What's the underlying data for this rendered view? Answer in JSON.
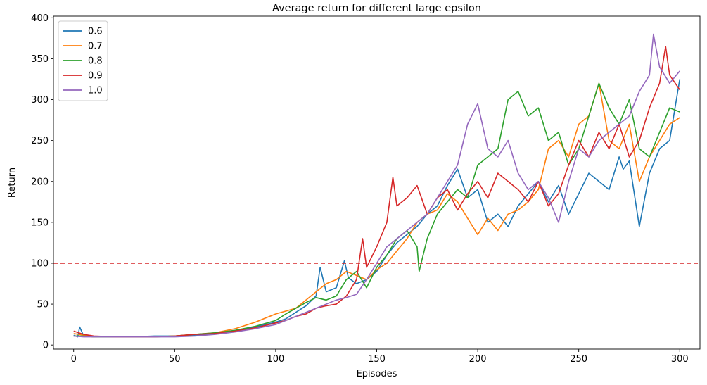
{
  "chart_data": {
    "type": "line",
    "title": "Average return for different large epsilon",
    "xlabel": "Episodes",
    "ylabel": "Return",
    "xlim": [
      -10,
      310
    ],
    "ylim": [
      -5,
      402
    ],
    "xticks": [
      0,
      50,
      100,
      150,
      200,
      250,
      300
    ],
    "yticks": [
      0,
      50,
      100,
      150,
      200,
      250,
      300,
      350,
      400
    ],
    "grid": false,
    "legend_position": "top-left",
    "reference_line": {
      "y": 100,
      "color": "#d62728",
      "style": "dashed"
    },
    "series": [
      {
        "name": "0.6",
        "color": "#1f77b4",
        "x": [
          0,
          2,
          3,
          5,
          10,
          20,
          30,
          40,
          50,
          60,
          70,
          80,
          90,
          100,
          105,
          110,
          115,
          120,
          122,
          125,
          130,
          134,
          136,
          140,
          145,
          150,
          155,
          160,
          165,
          170,
          175,
          180,
          185,
          190,
          195,
          200,
          205,
          210,
          215,
          220,
          225,
          230,
          235,
          240,
          245,
          250,
          255,
          260,
          265,
          270,
          272,
          275,
          280,
          285,
          290,
          295,
          300
        ],
        "y": [
          12,
          10,
          22,
          11,
          10,
          10,
          10,
          11,
          11,
          12,
          14,
          18,
          22,
          28,
          32,
          40,
          48,
          60,
          95,
          65,
          70,
          103,
          82,
          75,
          80,
          90,
          110,
          125,
          135,
          145,
          160,
          170,
          195,
          215,
          180,
          190,
          150,
          160,
          145,
          170,
          185,
          200,
          175,
          195,
          160,
          185,
          210,
          200,
          190,
          230,
          215,
          225,
          145,
          210,
          240,
          250,
          325
        ]
      },
      {
        "name": "0.7",
        "color": "#ff7f0e",
        "x": [
          0,
          5,
          10,
          20,
          30,
          40,
          50,
          60,
          70,
          80,
          90,
          95,
          100,
          110,
          115,
          120,
          125,
          130,
          135,
          140,
          145,
          150,
          155,
          160,
          165,
          170,
          175,
          180,
          185,
          190,
          195,
          200,
          205,
          210,
          215,
          220,
          225,
          230,
          235,
          240,
          245,
          250,
          255,
          260,
          265,
          270,
          275,
          280,
          285,
          290,
          295,
          300
        ],
        "y": [
          14,
          12,
          10,
          10,
          10,
          10,
          11,
          13,
          15,
          20,
          28,
          33,
          38,
          45,
          55,
          65,
          75,
          80,
          90,
          85,
          80,
          92,
          100,
          115,
          130,
          150,
          160,
          165,
          185,
          175,
          155,
          135,
          155,
          140,
          160,
          165,
          175,
          190,
          240,
          250,
          230,
          270,
          280,
          320,
          250,
          240,
          270,
          200,
          230,
          250,
          270,
          278
        ]
      },
      {
        "name": "0.8",
        "color": "#2ca02c",
        "x": [
          0,
          5,
          10,
          20,
          30,
          40,
          50,
          60,
          70,
          80,
          90,
          100,
          105,
          110,
          115,
          120,
          125,
          130,
          135,
          140,
          145,
          150,
          155,
          160,
          165,
          170,
          171,
          175,
          180,
          185,
          190,
          195,
          200,
          205,
          210,
          215,
          220,
          225,
          230,
          235,
          240,
          245,
          250,
          255,
          260,
          265,
          270,
          275,
          280,
          285,
          290,
          295,
          300
        ],
        "y": [
          11,
          11,
          10,
          10,
          10,
          10,
          11,
          13,
          15,
          18,
          23,
          30,
          38,
          45,
          52,
          58,
          55,
          60,
          80,
          90,
          70,
          95,
          110,
          130,
          140,
          120,
          90,
          130,
          160,
          175,
          190,
          180,
          220,
          230,
          240,
          300,
          310,
          280,
          290,
          250,
          260,
          220,
          240,
          280,
          320,
          290,
          270,
          300,
          240,
          230,
          260,
          290,
          285
        ]
      },
      {
        "name": "0.9",
        "color": "#d62728",
        "x": [
          0,
          5,
          10,
          20,
          30,
          40,
          50,
          60,
          70,
          80,
          90,
          100,
          105,
          110,
          115,
          120,
          125,
          130,
          135,
          140,
          143,
          145,
          150,
          155,
          158,
          160,
          165,
          170,
          175,
          180,
          185,
          190,
          195,
          200,
          205,
          210,
          215,
          220,
          225,
          230,
          235,
          240,
          245,
          250,
          255,
          260,
          265,
          270,
          275,
          280,
          285,
          290,
          293,
          295,
          300
        ],
        "y": [
          17,
          13,
          11,
          10,
          10,
          10,
          11,
          13,
          14,
          17,
          21,
          27,
          30,
          35,
          38,
          45,
          48,
          50,
          60,
          80,
          130,
          95,
          120,
          150,
          205,
          170,
          180,
          195,
          160,
          180,
          190,
          165,
          185,
          200,
          180,
          210,
          200,
          190,
          175,
          200,
          170,
          185,
          220,
          250,
          230,
          260,
          240,
          270,
          230,
          250,
          290,
          320,
          365,
          330,
          312
        ]
      },
      {
        "name": "1.0",
        "color": "#9467bd",
        "x": [
          0,
          5,
          10,
          20,
          30,
          40,
          50,
          60,
          70,
          80,
          90,
          100,
          105,
          110,
          115,
          120,
          125,
          130,
          135,
          140,
          145,
          150,
          155,
          160,
          165,
          170,
          175,
          180,
          185,
          190,
          195,
          200,
          205,
          210,
          215,
          220,
          225,
          230,
          235,
          240,
          245,
          250,
          255,
          260,
          265,
          270,
          275,
          280,
          285,
          287,
          290,
          295,
          300
        ],
        "y": [
          11,
          10,
          10,
          10,
          10,
          10,
          10,
          11,
          13,
          16,
          20,
          25,
          30,
          35,
          40,
          45,
          50,
          55,
          58,
          62,
          80,
          100,
          120,
          130,
          140,
          150,
          160,
          180,
          200,
          220,
          270,
          295,
          240,
          230,
          250,
          210,
          190,
          200,
          180,
          150,
          200,
          240,
          230,
          250,
          260,
          270,
          280,
          310,
          330,
          380,
          340,
          320,
          335
        ]
      }
    ]
  }
}
